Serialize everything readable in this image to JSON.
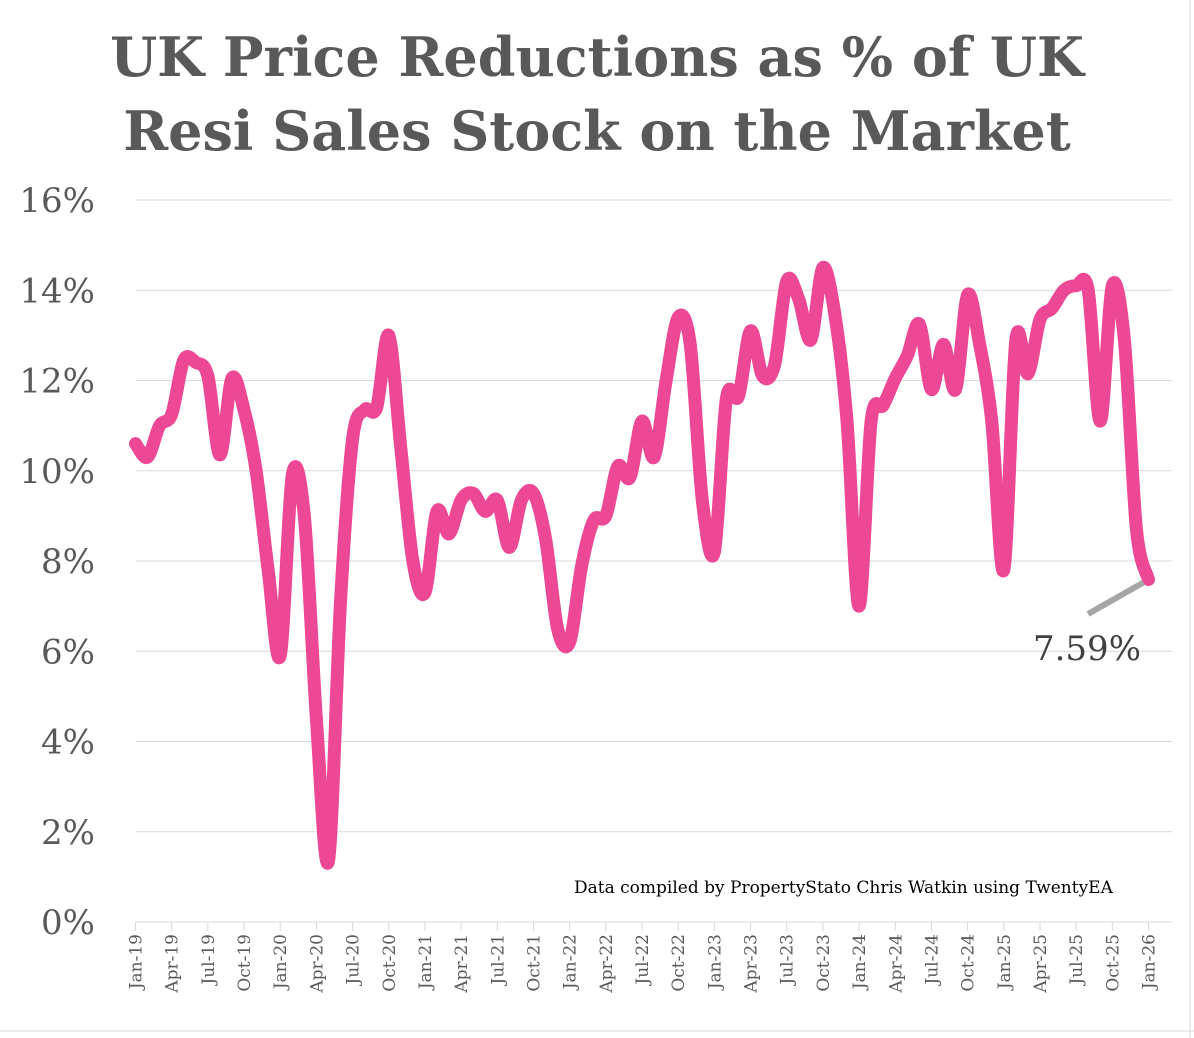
{
  "chart_data": {
    "type": "line",
    "title": [
      "UK Price Reductions as % of UK",
      "Resi Sales Stock on the Market"
    ],
    "xlabel": "",
    "ylabel": "",
    "ylim": [
      0,
      16
    ],
    "yticks": [
      0,
      2,
      4,
      6,
      8,
      10,
      12,
      14,
      16
    ],
    "ytick_labels": [
      "0%",
      "2%",
      "4%",
      "6%",
      "8%",
      "10%",
      "12%",
      "14%",
      "16%"
    ],
    "xtick_labels": [
      "Jan-19",
      "Apr-19",
      "Jul-19",
      "Oct-19",
      "Jan-20",
      "Apr-20",
      "Jul-20",
      "Oct-20",
      "Jan-21",
      "Apr-21",
      "Jul-21",
      "Oct-21",
      "Jan-22",
      "Apr-22",
      "Jul-22",
      "Oct-22",
      "Jan-23",
      "Apr-23",
      "Jul-23",
      "Oct-23",
      "Jan-24",
      "Apr-24",
      "Jul-24",
      "Oct-24",
      "Jan-25",
      "Apr-25",
      "Jul-25",
      "Oct-25",
      "Jan-26"
    ],
    "grid": true,
    "legend": "none",
    "series": [
      {
        "name": "Price reductions % of stock",
        "color": "#EC4895",
        "x_start": "Jan-19",
        "x_step": "month",
        "values": [
          10.6,
          10.3,
          11.0,
          11.25,
          12.45,
          12.4,
          12.1,
          10.35,
          12.05,
          11.35,
          10.0,
          7.8,
          5.9,
          9.9,
          9.0,
          4.5,
          1.35,
          7.1,
          10.7,
          11.35,
          11.4,
          13.0,
          10.5,
          8.0,
          7.3,
          9.1,
          8.6,
          9.35,
          9.5,
          9.1,
          9.35,
          8.3,
          9.35,
          9.5,
          8.5,
          6.5,
          6.2,
          7.9,
          8.9,
          9.0,
          10.1,
          9.85,
          11.1,
          10.3,
          12.0,
          13.4,
          12.8,
          9.35,
          8.2,
          11.6,
          11.65,
          13.1,
          12.1,
          12.35,
          14.2,
          13.8,
          12.9,
          14.5,
          13.45,
          11.1,
          7.0,
          11.1,
          11.45,
          12.05,
          12.55,
          13.25,
          11.8,
          12.8,
          11.8,
          13.9,
          12.8,
          11.1,
          7.8,
          12.9,
          12.15,
          13.35,
          13.6,
          14.0,
          14.1,
          14.0,
          11.1,
          14.1,
          12.9,
          8.7,
          7.59
        ]
      }
    ],
    "annotations": [
      {
        "text": "7.59%",
        "target": "Jan-26",
        "value": 7.59,
        "leader_color": "#A6A6A6"
      }
    ],
    "credit": "Data compiled by PropertyStato Chris Watkin using TwentyEA"
  }
}
